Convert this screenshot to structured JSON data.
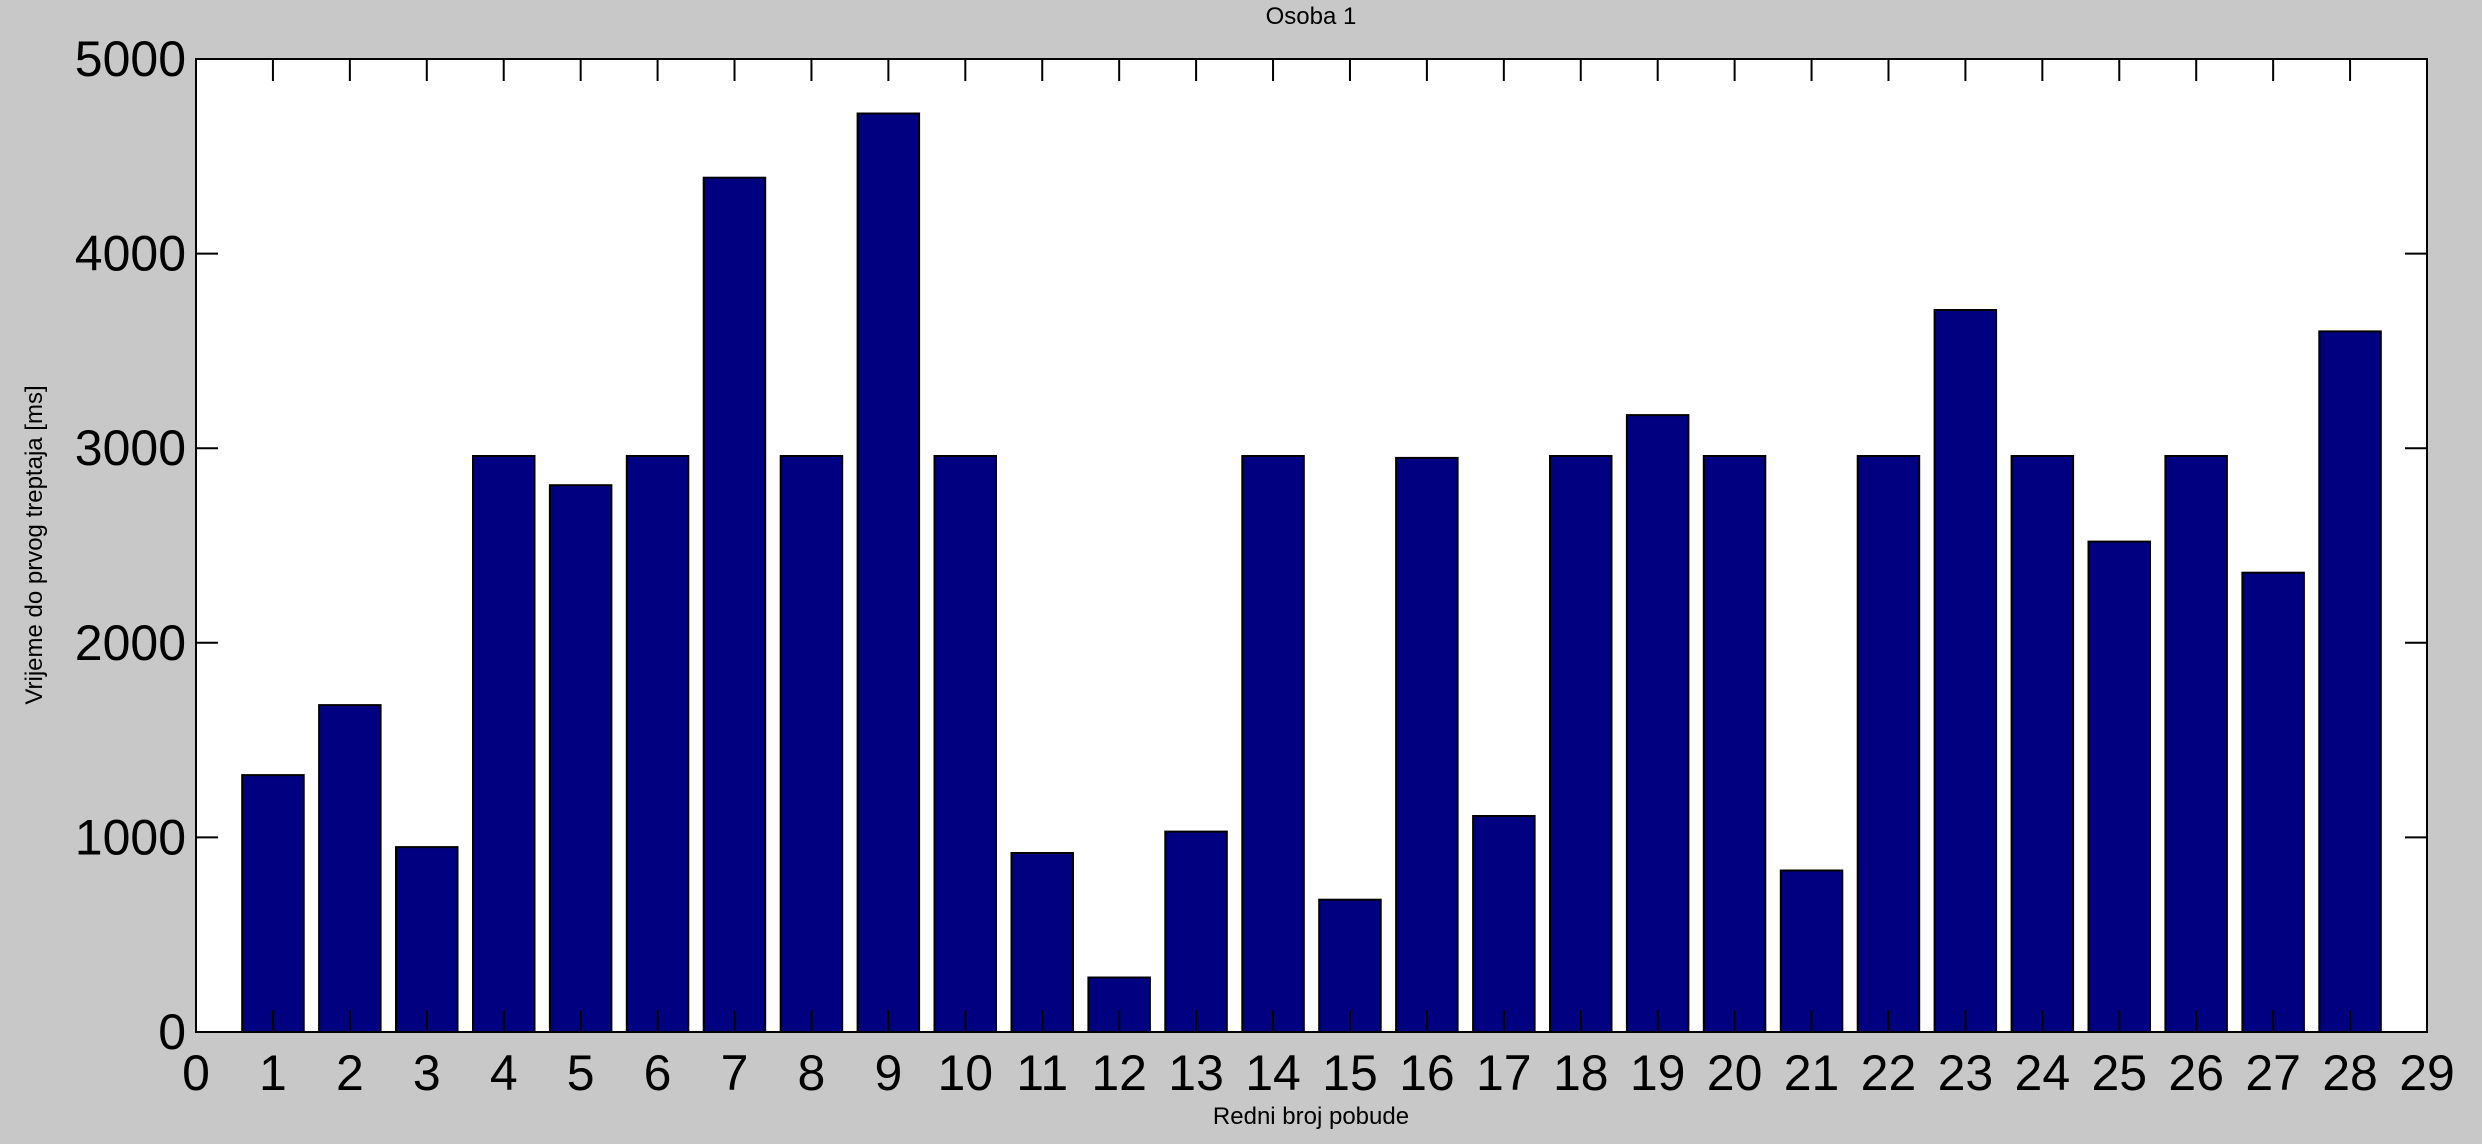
{
  "chart_data": {
    "type": "bar",
    "title": "Osoba 1",
    "xlabel": "Redni broj pobude",
    "ylabel": "Vrijeme do prvog treptaja [ms]",
    "xlim": [
      0,
      29
    ],
    "ylim": [
      0,
      5000
    ],
    "x_ticks": [
      0,
      1,
      2,
      3,
      4,
      5,
      6,
      7,
      8,
      9,
      10,
      11,
      12,
      13,
      14,
      15,
      16,
      17,
      18,
      19,
      20,
      21,
      22,
      23,
      24,
      25,
      26,
      27,
      28,
      29
    ],
    "y_ticks": [
      0,
      1000,
      2000,
      3000,
      4000,
      5000
    ],
    "grid": false,
    "legend": "none",
    "bar_color": "#000080",
    "background_color": "#c8c8c8",
    "plot_background": "#ffffff",
    "categories": [
      1,
      2,
      3,
      4,
      5,
      6,
      7,
      8,
      9,
      10,
      11,
      12,
      13,
      14,
      15,
      16,
      17,
      18,
      19,
      20,
      21,
      22,
      23,
      24,
      25,
      26,
      27,
      28
    ],
    "values": [
      1320,
      1680,
      950,
      2960,
      2810,
      2960,
      4390,
      2960,
      4720,
      2960,
      920,
      280,
      1030,
      2960,
      680,
      2950,
      1110,
      2960,
      3170,
      2960,
      830,
      2960,
      3710,
      2960,
      2520,
      2960,
      2360,
      3600
    ]
  }
}
